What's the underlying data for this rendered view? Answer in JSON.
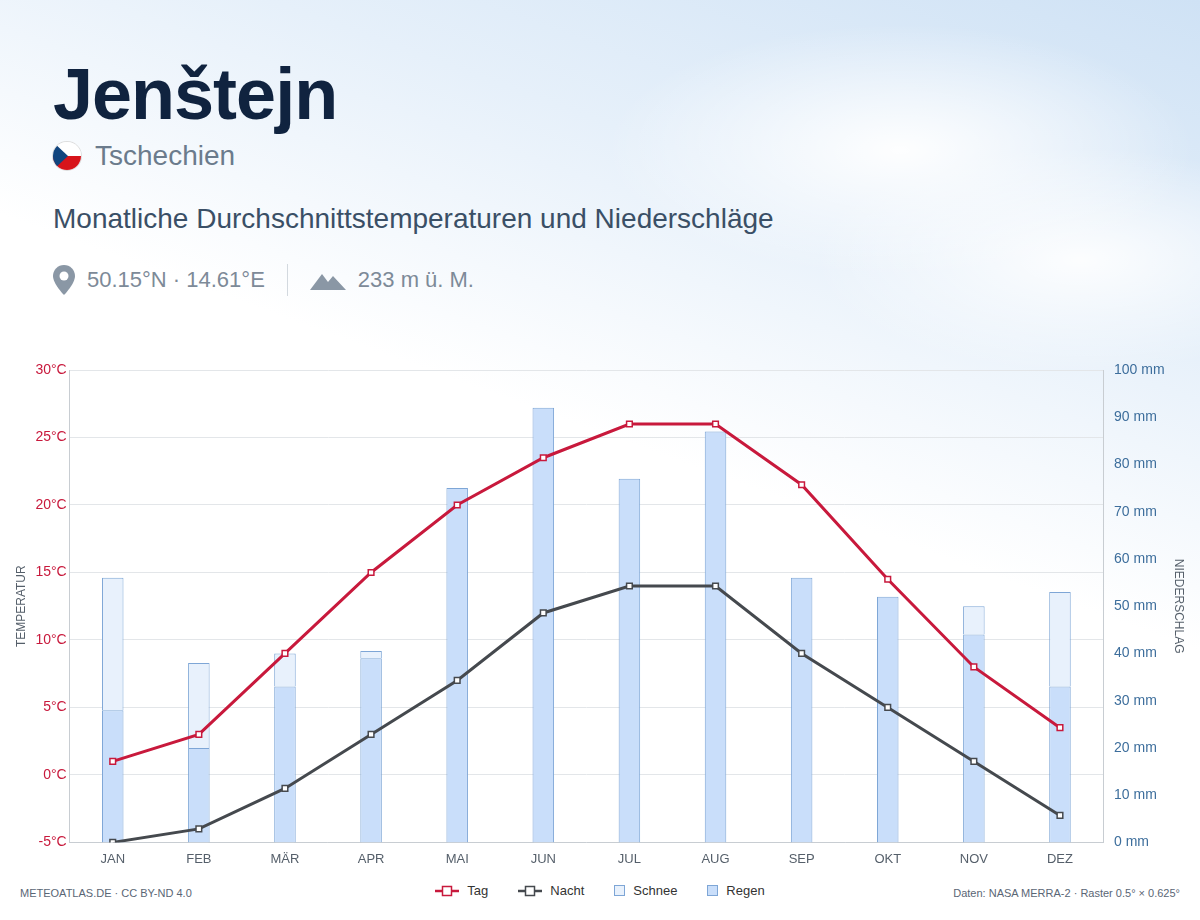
{
  "chart_data": {
    "type": "bar",
    "title": "Jenštejn",
    "country": "Tschechien",
    "subtitle": "Monatliche Durchschnittstemperaturen und Niederschläge",
    "coordinates": "50.15°N · 14.61°E",
    "elevation": "233 m ü. M.",
    "credit": "METEOATLAS.DE · CC BY-ND 4.0",
    "source": "Daten: NASA MERRA-2 · Raster 0.5° × 0.625°",
    "y_label": "TEMPERATUR",
    "y2_label": "NIEDERSCHLAG",
    "categories": [
      "JAN",
      "FEB",
      "MÄR",
      "APR",
      "MAI",
      "JUN",
      "JUL",
      "AUG",
      "SEP",
      "OKT",
      "NOV",
      "DEZ"
    ],
    "series": [
      {
        "name": "Tag",
        "type": "line",
        "color": "#c8193c",
        "marker": "square",
        "line_style": "solid",
        "values": [
          1,
          3,
          9,
          15,
          20,
          23.5,
          26,
          26,
          21.5,
          14.5,
          8,
          3.5
        ]
      },
      {
        "name": "Nacht",
        "type": "line",
        "color": "#45494e",
        "marker": "square",
        "line_style": "solid",
        "values": [
          -5,
          -4,
          -1,
          3,
          7,
          12,
          14,
          14,
          9,
          5,
          1,
          -3
        ]
      },
      {
        "name": "Schnee",
        "type": "bar",
        "axis": "y2",
        "color": "#e8f1fc",
        "values": [
          28,
          18,
          7,
          1.5,
          0,
          0,
          0,
          0,
          0,
          0,
          6,
          20
        ]
      },
      {
        "name": "Regen",
        "type": "bar",
        "axis": "y2",
        "color": "#c9defa",
        "values": [
          28,
          20,
          33,
          39,
          75,
          92,
          77,
          87,
          56,
          52,
          44,
          33
        ]
      }
    ],
    "stacked": true,
    "ylim": [
      -5,
      30
    ],
    "yticks": [
      {
        "value": -5,
        "label": "-5°C"
      },
      {
        "value": 0,
        "label": "0°C"
      },
      {
        "value": 5,
        "label": "5°C"
      },
      {
        "value": 10,
        "label": "10°C"
      },
      {
        "value": 15,
        "label": "15°C"
      },
      {
        "value": 20,
        "label": "20°C"
      },
      {
        "value": 25,
        "label": "25°C"
      },
      {
        "value": 30,
        "label": "30°C"
      }
    ],
    "y2lim": [
      0,
      100
    ],
    "y2ticks": [
      {
        "value": 0,
        "label": "0 mm"
      },
      {
        "value": 10,
        "label": "10 mm"
      },
      {
        "value": 20,
        "label": "20 mm"
      },
      {
        "value": 30,
        "label": "30 mm"
      },
      {
        "value": 40,
        "label": "40 mm"
      },
      {
        "value": 50,
        "label": "50 mm"
      },
      {
        "value": 60,
        "label": "60 mm"
      },
      {
        "value": 70,
        "label": "70 mm"
      },
      {
        "value": 80,
        "label": "80 mm"
      },
      {
        "value": 90,
        "label": "90 mm"
      },
      {
        "value": 100,
        "label": "100 mm"
      }
    ],
    "grid": true,
    "legend": "bottom"
  }
}
